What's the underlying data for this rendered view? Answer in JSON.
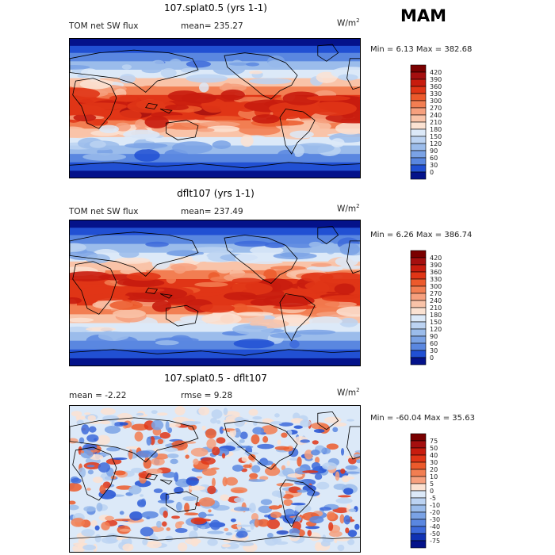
{
  "season": "MAM",
  "colors": {
    "warm": [
      "#7a0000",
      "#a50f0f",
      "#c81c0e",
      "#e03516",
      "#ec5a2c",
      "#f27e52",
      "#f6a07e",
      "#f9c3a8",
      "#fbe2d2"
    ],
    "cool": [
      "#dce9f8",
      "#bcd3f2",
      "#9bbceb",
      "#7aa2e5",
      "#5a87e0",
      "#3d6adb",
      "#2150d3",
      "#1032b3",
      "#04128a"
    ],
    "coast": "#000000"
  },
  "chart_data": [
    {
      "type": "heatmap",
      "title": "107.splat0.5 (yrs 1-1)",
      "left_label": "TOM net SW flux",
      "stat_text": "mean= 235.27",
      "units": "W/m",
      "units_sup": "2",
      "minmax_text": "Min =    6.13 Max = 382.68",
      "colorbar_ticks": [
        "420",
        "390",
        "360",
        "330",
        "300",
        "270",
        "240",
        "210",
        "180",
        "150",
        "120",
        "90",
        "60",
        "30",
        "0"
      ],
      "kind": "abs"
    },
    {
      "type": "heatmap",
      "title": "dflt107 (yrs 1-1)",
      "left_label": "TOM net SW flux",
      "stat_text": "mean= 237.49",
      "units": "W/m",
      "units_sup": "2",
      "minmax_text": "Min =    6.26 Max = 386.74",
      "colorbar_ticks": [
        "420",
        "390",
        "360",
        "330",
        "300",
        "270",
        "240",
        "210",
        "180",
        "150",
        "120",
        "90",
        "60",
        "30",
        "0"
      ],
      "kind": "abs"
    },
    {
      "type": "heatmap",
      "title": "107.splat0.5 - dflt107",
      "left_label": "mean =   -2.22",
      "stat_text": "rmse =    9.28",
      "units": "W/m",
      "units_sup": "2",
      "minmax_text": "Min = -60.04 Max =  35.63",
      "colorbar_ticks": [
        "75",
        "50",
        "40",
        "30",
        "20",
        "10",
        "5",
        "0",
        "-5",
        "-10",
        "-20",
        "-30",
        "-40",
        "-50",
        "-75"
      ],
      "kind": "diff"
    }
  ]
}
